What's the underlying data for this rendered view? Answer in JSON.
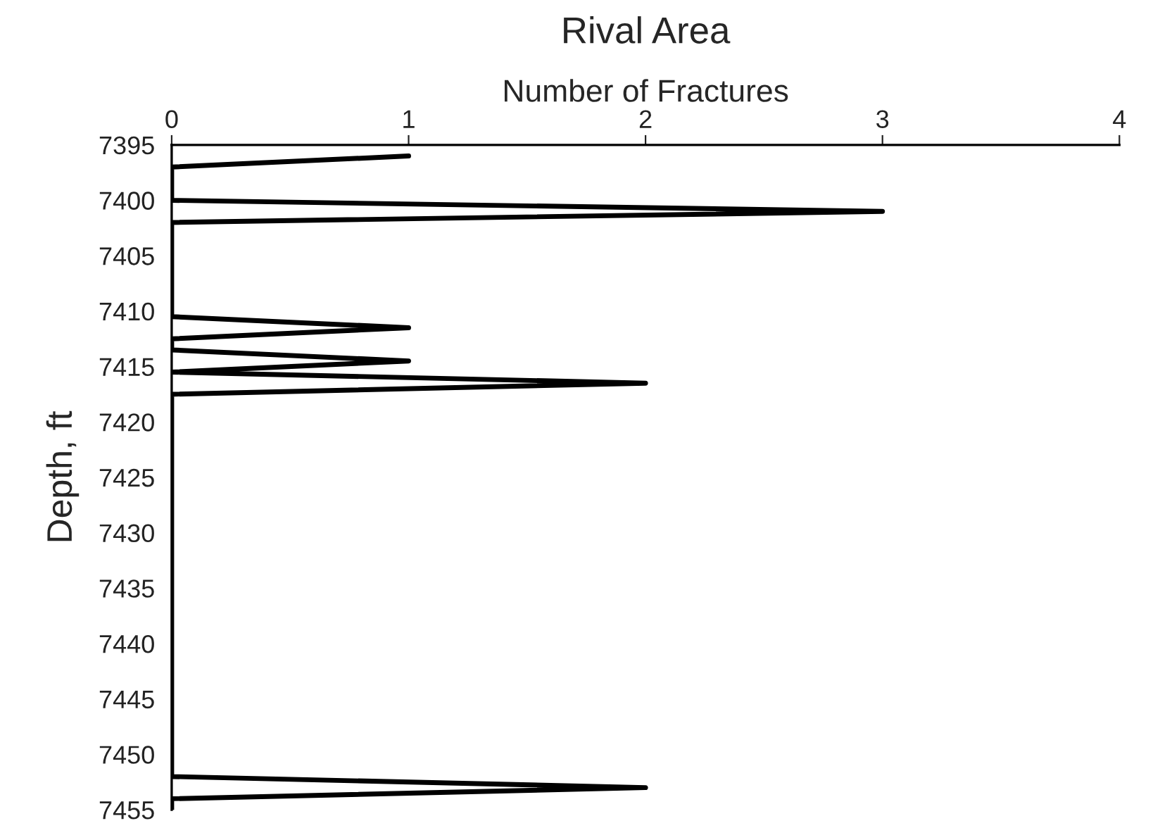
{
  "chart_data": {
    "type": "line",
    "title": "Rival Area",
    "xlabel": "Number of Fractures",
    "ylabel": "Depth, ft",
    "series": [
      {
        "color": "#000000",
        "x": [
          1,
          0,
          0,
          3,
          0,
          0,
          1,
          0,
          0,
          1,
          0,
          2,
          0,
          0,
          2,
          0,
          0
        ],
        "values": [
          7396,
          7397,
          7400,
          7401,
          7402,
          7410.5,
          7411.5,
          7412.5,
          7413.5,
          7414.5,
          7415.5,
          7416.5,
          7417.5,
          7452,
          7453,
          7454,
          7455
        ]
      }
    ],
    "xlim": [
      0,
      4
    ],
    "xticks": [
      0,
      1,
      2,
      3,
      4
    ],
    "ylim": [
      7455,
      7395
    ],
    "yticks": [
      7395,
      7400,
      7405,
      7410,
      7415,
      7420,
      7425,
      7430,
      7435,
      7440,
      7445,
      7450,
      7455
    ],
    "grid": false
  }
}
